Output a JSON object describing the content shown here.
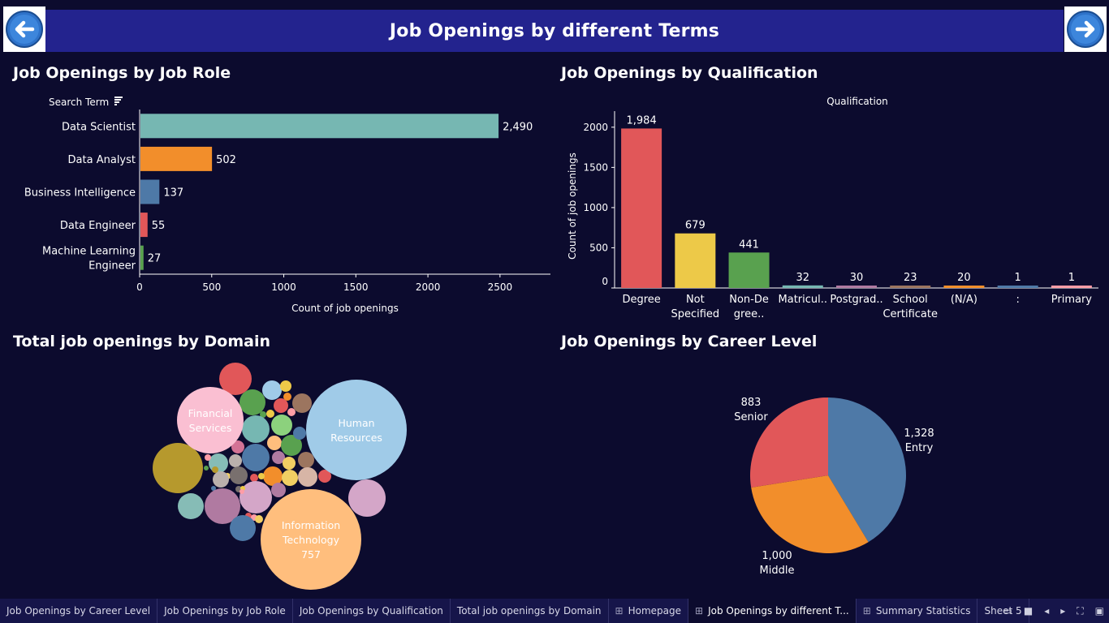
{
  "header": {
    "title": "Job Openings by different Terms"
  },
  "panels": {
    "job_role": {
      "title": "Job Openings by Job Role",
      "field_label": "Search Term",
      "xlabel": "Count of job openings"
    },
    "qualification": {
      "title": "Job Openings by Qualification",
      "column_header": "Qualification",
      "ylabel": "Count of job openings"
    },
    "domain": {
      "title": "Total job openings by Domain"
    },
    "career": {
      "title": "Job Openings by Career Level"
    }
  },
  "chart_data": [
    {
      "type": "bar",
      "orientation": "horizontal",
      "title": "Job Openings by Job Role",
      "categories": [
        "Data Scientist",
        "Data Analyst",
        "Business Intelligence",
        "Data Engineer",
        "Machine Learning Engineer"
      ],
      "category_lines": [
        [
          "Data Scientist"
        ],
        [
          "Data Analyst"
        ],
        [
          "Business Intelligence"
        ],
        [
          "Data Engineer"
        ],
        [
          "Machine Learning",
          "Engineer"
        ]
      ],
      "values": [
        2490,
        502,
        137,
        55,
        27
      ],
      "value_labels": [
        "2,490",
        "502",
        "137",
        "55",
        "27"
      ],
      "colors": [
        "#76b7b2",
        "#f28e2b",
        "#4e79a7",
        "#e15759",
        "#59a14f"
      ],
      "xlabel": "Count of job openings",
      "xlim": [
        0,
        2850
      ],
      "xticks": [
        0,
        500,
        1000,
        1500,
        2000,
        2500
      ]
    },
    {
      "type": "bar",
      "title": "Job Openings by Qualification",
      "categories": [
        "Degree",
        "Not Specified",
        "Non-Degree..",
        "Matricul..",
        "Postgrad..",
        "School Certificate",
        "(N/A)",
        ":",
        "Primary"
      ],
      "category_lines": [
        [
          "Degree"
        ],
        [
          "Not",
          "Specified"
        ],
        [
          "Non-De",
          "gree.."
        ],
        [
          "Matricul.."
        ],
        [
          "Postgrad.."
        ],
        [
          "School",
          "Certificate"
        ],
        [
          "(N/A)"
        ],
        [
          ":"
        ],
        [
          "Primary"
        ]
      ],
      "values": [
        1984,
        679,
        441,
        32,
        30,
        23,
        20,
        1,
        1
      ],
      "value_labels": [
        "1,984",
        "679",
        "441",
        "32",
        "30",
        "23",
        "20",
        "1",
        "1"
      ],
      "colors": [
        "#e15759",
        "#edc948",
        "#59a14f",
        "#76b7b2",
        "#b07aa1",
        "#9c755f",
        "#f28e2b",
        "#4e79a7",
        "#ff9da7"
      ],
      "ylabel": "Count of job openings",
      "ylim": [
        0,
        2200
      ],
      "yticks": [
        0,
        500,
        1000,
        1500,
        2000
      ]
    },
    {
      "type": "pie",
      "title": "Job Openings by Career Level",
      "slices": [
        {
          "name": "Entry",
          "value": 1328,
          "label": "1,328",
          "color": "#4e79a7"
        },
        {
          "name": "Middle",
          "value": 1000,
          "label": "1,000",
          "color": "#f28e2b"
        },
        {
          "name": "Senior",
          "value": 883,
          "label": "883",
          "color": "#e15759"
        }
      ]
    },
    {
      "type": "bubble",
      "title": "Total job openings by Domain",
      "labeled_bubbles": [
        {
          "name": "Human Resources",
          "lines": [
            "Human",
            "Resources"
          ],
          "color": "#a0cbe8"
        },
        {
          "name": "Information Technology",
          "lines": [
            "Information",
            "Technology",
            "757"
          ],
          "value": 757,
          "color": "#ffbe7d"
        },
        {
          "name": "Financial Services",
          "lines": [
            "Financial",
            "Services"
          ],
          "color": "#fabfd2"
        }
      ]
    }
  ],
  "tabs": [
    {
      "label": "Job Openings by Career Level",
      "grid": false,
      "active": false
    },
    {
      "label": "Job Openings by Job Role",
      "grid": false,
      "active": false
    },
    {
      "label": "Job Openings by Qualification",
      "grid": false,
      "active": false
    },
    {
      "label": "Total job openings by Domain",
      "grid": false,
      "active": false
    },
    {
      "label": "Homepage",
      "grid": true,
      "active": false
    },
    {
      "label": "Job Openings by different T...",
      "grid": true,
      "active": true
    },
    {
      "label": "Summary Statistics",
      "grid": true,
      "active": false
    },
    {
      "label": "Sheet 5",
      "grid": false,
      "active": false
    }
  ],
  "nav": {
    "back": "arrow-left-icon",
    "forward": "arrow-right-icon"
  },
  "colors": {
    "background": "#0c0b2e",
    "header": "#23238e",
    "tabbar": "#16154a"
  }
}
